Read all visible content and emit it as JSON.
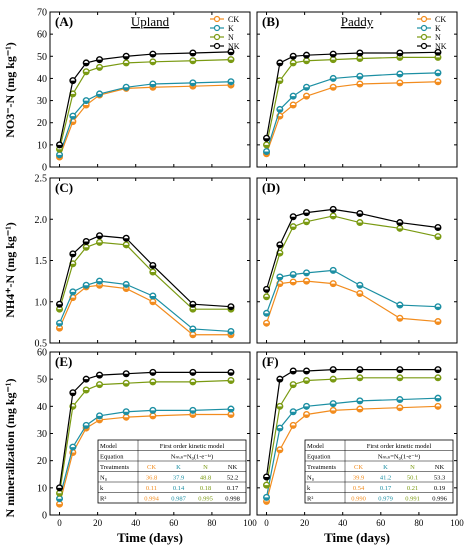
{
  "colors": {
    "CK": "#f28c1e",
    "K": "#1c8fa3",
    "N": "#7a9a12",
    "NK": "#000000"
  },
  "x_ticks": [
    "0",
    "20",
    "40",
    "60",
    "80",
    "100"
  ],
  "x_label": "Time (days)",
  "row_labels": [
    "NO3⁻-N (mg kg⁻¹)",
    "NH4⁺-N (mg kg⁻¹)",
    "N mineralization (mg kg⁻¹)"
  ],
  "legend_labels": [
    "CK",
    "K",
    "N",
    "NK"
  ],
  "chart_data": [
    {
      "id": "A",
      "type": "scatter",
      "panel_label": "(A)",
      "title": "Upland",
      "ylim": [
        0,
        70
      ],
      "yticks": [
        "0",
        "10",
        "20",
        "30",
        "40",
        "50",
        "60",
        "70"
      ],
      "x": [
        0,
        7,
        14,
        21,
        35,
        49,
        70,
        90
      ],
      "series": [
        {
          "name": "CK",
          "values": [
            4.5,
            20.5,
            28,
            32.5,
            35.5,
            36,
            36.5,
            37
          ]
        },
        {
          "name": "K",
          "values": [
            5.5,
            23,
            30,
            33,
            36,
            37.5,
            38,
            38.5
          ]
        },
        {
          "name": "N",
          "values": [
            8,
            33,
            43,
            45,
            47,
            47.5,
            48,
            48.5
          ]
        },
        {
          "name": "NK",
          "values": [
            10,
            39,
            47,
            48.5,
            50,
            51,
            51.5,
            52
          ]
        }
      ]
    },
    {
      "id": "B",
      "type": "scatter",
      "panel_label": "(B)",
      "title": "Paddy",
      "ylim": [
        0,
        70
      ],
      "yticks": [
        "0",
        "10",
        "20",
        "30",
        "40",
        "50",
        "60",
        "70"
      ],
      "x": [
        0,
        7,
        14,
        21,
        35,
        49,
        70,
        90
      ],
      "series": [
        {
          "name": "CK",
          "values": [
            6,
            23,
            28,
            32,
            36,
            37.5,
            38,
            38.5
          ]
        },
        {
          "name": "K",
          "values": [
            7,
            26,
            32,
            36,
            40,
            41,
            42,
            42.5
          ]
        },
        {
          "name": "N",
          "values": [
            10,
            39,
            47,
            48,
            48.5,
            49,
            49.5,
            49.5
          ]
        },
        {
          "name": "NK",
          "values": [
            13,
            47,
            50,
            50.5,
            51,
            51.5,
            51.5,
            51.8
          ]
        }
      ]
    },
    {
      "id": "C",
      "type": "scatter",
      "panel_label": "(C)",
      "title": "",
      "ylim": [
        0.5,
        2.5
      ],
      "yticks": [
        "0.5",
        "1.0",
        "1.5",
        "2.0",
        "2.5"
      ],
      "x": [
        0,
        7,
        14,
        21,
        35,
        49,
        70,
        90
      ],
      "series": [
        {
          "name": "CK",
          "values": [
            0.68,
            1.05,
            1.18,
            1.2,
            1.16,
            1.0,
            0.6,
            0.6
          ]
        },
        {
          "name": "K",
          "values": [
            0.74,
            1.12,
            1.2,
            1.25,
            1.21,
            1.07,
            0.67,
            0.64
          ]
        },
        {
          "name": "N",
          "values": [
            0.91,
            1.46,
            1.66,
            1.72,
            1.69,
            1.36,
            0.91,
            0.91
          ]
        },
        {
          "name": "NK",
          "values": [
            0.97,
            1.58,
            1.73,
            1.8,
            1.77,
            1.44,
            0.97,
            0.94
          ]
        }
      ]
    },
    {
      "id": "D",
      "type": "scatter",
      "panel_label": "(D)",
      "title": "",
      "ylim": [
        0.5,
        2.5
      ],
      "yticks": [
        "0.5",
        "1.0",
        "1.5",
        "2.0",
        "2.5"
      ],
      "x": [
        0,
        7,
        14,
        21,
        35,
        49,
        70,
        90
      ],
      "series": [
        {
          "name": "CK",
          "values": [
            0.74,
            1.22,
            1.24,
            1.25,
            1.22,
            1.1,
            0.8,
            0.76
          ]
        },
        {
          "name": "K",
          "values": [
            0.86,
            1.3,
            1.33,
            1.35,
            1.38,
            1.2,
            0.96,
            0.94
          ]
        },
        {
          "name": "N",
          "values": [
            1.06,
            1.59,
            1.91,
            1.97,
            2.04,
            1.96,
            1.89,
            1.79
          ]
        },
        {
          "name": "NK",
          "values": [
            1.15,
            1.69,
            2.03,
            2.08,
            2.12,
            2.07,
            1.96,
            1.9
          ]
        }
      ]
    },
    {
      "id": "E",
      "type": "scatter",
      "panel_label": "(E)",
      "title": "",
      "ylim": [
        0,
        60
      ],
      "yticks": [
        "0",
        "10",
        "20",
        "30",
        "40",
        "50",
        "60"
      ],
      "x": [
        0,
        7,
        14,
        21,
        35,
        49,
        70,
        90
      ],
      "series": [
        {
          "name": "CK",
          "values": [
            4,
            23,
            32,
            35,
            36,
            36.5,
            37,
            37
          ]
        },
        {
          "name": "K",
          "values": [
            6,
            25,
            33,
            36.5,
            38,
            38.5,
            38.5,
            39
          ]
        },
        {
          "name": "N",
          "values": [
            8,
            40,
            46,
            48,
            48.5,
            49,
            49,
            49.5
          ]
        },
        {
          "name": "NK",
          "values": [
            10,
            45,
            50,
            51.5,
            52,
            52.5,
            52.5,
            52.5
          ]
        }
      ],
      "table": {
        "header": [
          "Model",
          "First order kinetic model"
        ],
        "equation": [
          "Equation",
          "Nₘᵢₙ=N₀(1-e⁻ᵏᵗ)"
        ],
        "treatments": [
          "Treatments",
          "CK",
          "K",
          "N",
          "NK"
        ],
        "n0": [
          "N₀",
          "36.8",
          "37.9",
          "48.8",
          "52.2"
        ],
        "k": [
          "k",
          "0.11",
          "0.14",
          "0.18",
          "0.17"
        ],
        "r2": [
          "R²",
          "0.994",
          "0.987",
          "0.995",
          "0.998"
        ]
      }
    },
    {
      "id": "F",
      "type": "scatter",
      "panel_label": "(F)",
      "title": "",
      "ylim": [
        0,
        60
      ],
      "yticks": [
        "0",
        "10",
        "20",
        "30",
        "40",
        "50",
        "60"
      ],
      "x": [
        0,
        7,
        14,
        21,
        35,
        49,
        70,
        90
      ],
      "series": [
        {
          "name": "CK",
          "values": [
            5,
            24,
            33,
            37,
            38.5,
            39,
            39.5,
            40
          ]
        },
        {
          "name": "K",
          "values": [
            6.5,
            32,
            38,
            40,
            41,
            42,
            42.5,
            43
          ]
        },
        {
          "name": "N",
          "values": [
            11,
            40,
            48,
            49.5,
            50,
            50.5,
            50.5,
            50.5
          ]
        },
        {
          "name": "NK",
          "values": [
            14,
            50,
            53,
            53,
            53.5,
            53.5,
            53.5,
            53.5
          ]
        }
      ],
      "table": {
        "header": [
          "Model",
          "First order kinetic model"
        ],
        "equation": [
          "Equation",
          "Nₘᵢₙ=N₀(1-e⁻ᵏᵗ)"
        ],
        "treatments": [
          "Treatments",
          "CK",
          "K",
          "N",
          "NK"
        ],
        "n0": [
          "N₀",
          "39.9",
          "41.2",
          "50.1",
          "53.3"
        ],
        "k": [
          "k",
          "0.54",
          "0.17",
          "0.21",
          "0.19"
        ],
        "r2": [
          "R²",
          "0.990",
          "0.979",
          "0.991",
          "0.996"
        ]
      }
    }
  ]
}
